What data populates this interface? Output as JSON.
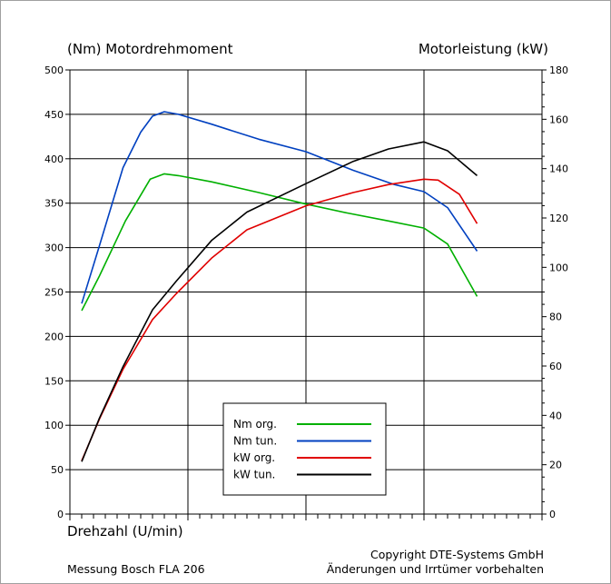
{
  "header": {
    "left_title": "(Nm)  Motordrehmoment",
    "right_title": "Motorleistung  (kW)"
  },
  "footer": {
    "measurement": "Messung Bosch FLA 206",
    "copyright": "Copyright  DTE-Systems GmbH",
    "disclaimer": "Änderungen und Irrtümer vorbehalten"
  },
  "colors": {
    "nm_org": "#00b000",
    "nm_tun": "#0040c0",
    "kw_org": "#e00000",
    "kw_tun": "#000000"
  },
  "chart_data": {
    "type": "line",
    "xlabel": "Drehzahl  (U/min)",
    "ylabel_left": "(Nm)  Motordrehmoment",
    "ylabel_right": "Motorleistung  (kW)",
    "xlim": [
      0,
      400
    ],
    "ylim_left": [
      0,
      500
    ],
    "ylim_right": [
      0,
      180
    ],
    "y_ticks_left": [
      0,
      50,
      100,
      150,
      200,
      250,
      300,
      350,
      400,
      450,
      500
    ],
    "y_ticks_right": [
      0,
      20,
      40,
      60,
      80,
      100,
      120,
      140,
      160,
      180
    ],
    "grid": true,
    "legend_position": "bottom-center",
    "series": [
      {
        "name": "Nm org.",
        "axis": "left",
        "color": "#00b000",
        "x": [
          10,
          25,
          47,
          68,
          80,
          92,
          120,
          160,
          200,
          235,
          270,
          300,
          320,
          345
        ],
        "y": [
          229,
          268,
          330,
          377,
          383,
          381,
          374,
          362,
          349,
          339,
          330,
          322,
          304,
          245
        ]
      },
      {
        "name": "Nm tun.",
        "axis": "left",
        "color": "#0040c0",
        "x": [
          10,
          25,
          45,
          60,
          70,
          80,
          92,
          120,
          160,
          200,
          240,
          275,
          300,
          320,
          345
        ],
        "y": [
          237,
          302,
          390,
          430,
          448,
          453,
          450,
          439,
          422,
          408,
          387,
          371,
          363,
          345,
          296
        ]
      },
      {
        "name": "kW org.",
        "axis": "left",
        "color": "#e00000",
        "x": [
          10,
          25,
          45,
          70,
          90,
          120,
          150,
          200,
          240,
          270,
          300,
          312,
          330,
          345
        ],
        "y": [
          60,
          107,
          163,
          219,
          248,
          288,
          320,
          347,
          362,
          371,
          377,
          376,
          360,
          327
        ]
      },
      {
        "name": "kW tun.",
        "axis": "left",
        "color": "#000000",
        "x": [
          10,
          25,
          45,
          70,
          90,
          120,
          150,
          200,
          240,
          270,
          300,
          320,
          345
        ],
        "y": [
          59,
          108,
          166,
          230,
          262,
          308,
          340,
          372,
          397,
          411,
          419,
          409,
          381
        ]
      }
    ]
  }
}
